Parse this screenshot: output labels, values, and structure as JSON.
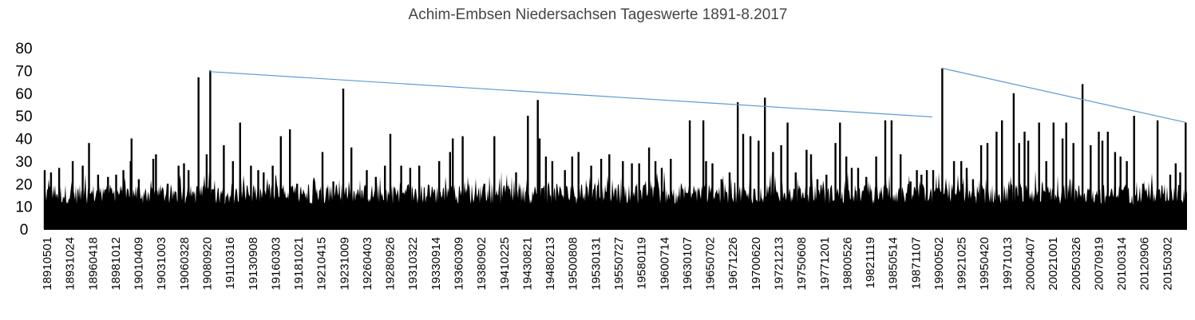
{
  "chart_data": {
    "type": "bar",
    "title": "Achim-Embsen Niedersachsen Tageswerte 1891-8.2017",
    "xlabel": "",
    "ylabel": "",
    "ylim": [
      0,
      80
    ],
    "yticks": [
      0,
      10,
      20,
      30,
      40,
      50,
      60,
      70,
      80
    ],
    "grid": false,
    "legend": "none",
    "x_start": "1891-05-01",
    "x_end": "2017-08-31",
    "x_tick_labels": [
      "18910501",
      "18931024",
      "18960418",
      "18981012",
      "19010409",
      "19031003",
      "19060328",
      "19080920",
      "19110316",
      "19130908",
      "19160303",
      "19181021",
      "19210415",
      "19231009",
      "19260403",
      "19280926",
      "19310322",
      "19330914",
      "19360309",
      "19380902",
      "19410225",
      "19430821",
      "19480213",
      "19500808",
      "19530131",
      "19550727",
      "19580119",
      "19600714",
      "19630107",
      "19650702",
      "19671226",
      "19700620",
      "19721213",
      "19750608",
      "19771201",
      "19800526",
      "19821119",
      "19850514",
      "19871107",
      "19900502",
      "19921025",
      "19950420",
      "19971013",
      "20000407",
      "20021001",
      "20050326",
      "20070919",
      "20100314",
      "20120906",
      "20150302"
    ],
    "series": [
      {
        "values": [
          [
            1891.4,
            26
          ],
          [
            1892.1,
            25
          ],
          [
            1893.0,
            27
          ],
          [
            1894.5,
            30
          ],
          [
            1895.6,
            28
          ],
          [
            1896.3,
            38
          ],
          [
            1897.3,
            24
          ],
          [
            1898.4,
            23
          ],
          [
            1899.3,
            24
          ],
          [
            1900.1,
            26
          ],
          [
            1900.9,
            30
          ],
          [
            1901.0,
            40
          ],
          [
            1901.8,
            22
          ],
          [
            1903.4,
            31
          ],
          [
            1903.7,
            33
          ],
          [
            1905.0,
            20
          ],
          [
            1906.2,
            28
          ],
          [
            1906.8,
            29
          ],
          [
            1907.3,
            26
          ],
          [
            1908.4,
            67
          ],
          [
            1909.3,
            33
          ],
          [
            1909.7,
            70
          ],
          [
            1911.2,
            37
          ],
          [
            1912.2,
            30
          ],
          [
            1913.0,
            47
          ],
          [
            1914.2,
            28
          ],
          [
            1915.0,
            26
          ],
          [
            1915.6,
            25
          ],
          [
            1916.6,
            28
          ],
          [
            1917.5,
            41
          ],
          [
            1918.5,
            44
          ],
          [
            1919.3,
            20
          ],
          [
            1922.1,
            34
          ],
          [
            1923.3,
            21
          ],
          [
            1924.4,
            62
          ],
          [
            1925.3,
            36
          ],
          [
            1927.0,
            26
          ],
          [
            1928.0,
            23
          ],
          [
            1929.0,
            28
          ],
          [
            1929.6,
            42
          ],
          [
            1930.8,
            28
          ],
          [
            1931.8,
            27
          ],
          [
            1932.8,
            28
          ],
          [
            1935.0,
            30
          ],
          [
            1936.2,
            34
          ],
          [
            1936.5,
            40
          ],
          [
            1937.6,
            41
          ],
          [
            1938.2,
            15
          ],
          [
            1940.0,
            20
          ],
          [
            1941.1,
            41
          ],
          [
            1942.5,
            19
          ],
          [
            1943.5,
            25
          ],
          [
            1944.8,
            50
          ],
          [
            1945.9,
            57
          ],
          [
            1946.1,
            40
          ],
          [
            1946.8,
            32
          ],
          [
            1947.5,
            30
          ],
          [
            1948.9,
            26
          ],
          [
            1949.7,
            32
          ],
          [
            1950.4,
            34
          ],
          [
            1951.8,
            28
          ],
          [
            1952.9,
            31
          ],
          [
            1953.8,
            33
          ],
          [
            1955.3,
            30
          ],
          [
            1956.3,
            29
          ],
          [
            1957.1,
            29
          ],
          [
            1958.2,
            36
          ],
          [
            1958.9,
            30
          ],
          [
            1959.6,
            27
          ],
          [
            1960.6,
            31
          ],
          [
            1962.7,
            48
          ],
          [
            1963.7,
            10
          ],
          [
            1964.2,
            48
          ],
          [
            1964.5,
            30
          ],
          [
            1965.2,
            29
          ],
          [
            1966.2,
            22
          ],
          [
            1967.1,
            25
          ],
          [
            1968.0,
            56
          ],
          [
            1968.6,
            42
          ],
          [
            1969.4,
            41
          ],
          [
            1970.3,
            39
          ],
          [
            1971.0,
            58
          ],
          [
            1971.9,
            34
          ],
          [
            1972.8,
            37
          ],
          [
            1973.5,
            47
          ],
          [
            1974.4,
            25
          ],
          [
            1975.6,
            35
          ],
          [
            1976.1,
            33
          ],
          [
            1976.8,
            22
          ],
          [
            1977.8,
            24
          ],
          [
            1978.8,
            38
          ],
          [
            1979.3,
            47
          ],
          [
            1980.0,
            32
          ],
          [
            1980.6,
            27
          ],
          [
            1981.3,
            27
          ],
          [
            1982.2,
            23
          ],
          [
            1983.3,
            32
          ],
          [
            1984.3,
            48
          ],
          [
            1985.0,
            48
          ],
          [
            1986.0,
            33
          ],
          [
            1987.1,
            21
          ],
          [
            1987.8,
            26
          ],
          [
            1988.3,
            24
          ],
          [
            1988.9,
            26
          ],
          [
            1989.6,
            26
          ],
          [
            1990.1,
            18
          ],
          [
            1990.6,
            71
          ],
          [
            1991.9,
            30
          ],
          [
            1992.7,
            30
          ],
          [
            1993.3,
            27
          ],
          [
            1994.0,
            22
          ],
          [
            1994.9,
            37
          ],
          [
            1995.6,
            38
          ],
          [
            1996.6,
            43
          ],
          [
            1997.2,
            48
          ],
          [
            1998.5,
            60
          ],
          [
            1999.1,
            38
          ],
          [
            1999.7,
            43
          ],
          [
            2000.1,
            39
          ],
          [
            2001.3,
            47
          ],
          [
            2002.1,
            30
          ],
          [
            2002.9,
            47
          ],
          [
            2003.9,
            40
          ],
          [
            2004.3,
            47
          ],
          [
            2005.1,
            38
          ],
          [
            2006.1,
            64
          ],
          [
            2007.0,
            37
          ],
          [
            2007.9,
            43
          ],
          [
            2008.3,
            39
          ],
          [
            2008.9,
            43
          ],
          [
            2009.7,
            34
          ],
          [
            2010.3,
            32
          ],
          [
            2011.0,
            30
          ],
          [
            2011.8,
            50
          ],
          [
            2012.8,
            20
          ],
          [
            2014.4,
            48
          ],
          [
            2015.8,
            24
          ],
          [
            2016.4,
            29
          ],
          [
            2016.9,
            25
          ],
          [
            2017.5,
            47
          ]
        ]
      }
    ],
    "trend_lines": [
      {
        "from": [
          1909.7,
          69.5
        ],
        "to": [
          1989.5,
          49.5
        ]
      },
      {
        "from": [
          1990.6,
          71
        ],
        "to": [
          2017.6,
          47
        ]
      }
    ],
    "colors": {
      "bars": "#000000",
      "trend": "#5b9bd5",
      "axis": "#000000"
    }
  }
}
